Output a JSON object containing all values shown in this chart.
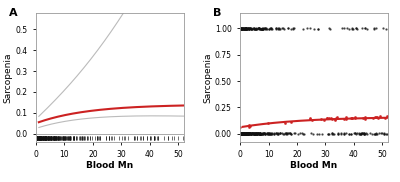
{
  "panel_A": {
    "label": "A",
    "xlim": [
      0,
      52
    ],
    "ylim": [
      -0.04,
      0.58
    ],
    "yticks": [
      0.0,
      0.1,
      0.2,
      0.3,
      0.4,
      0.5
    ],
    "xticks": [
      0,
      10,
      20,
      30,
      40,
      50
    ],
    "xlabel": "Blood Mn",
    "ylabel": "Sarcopenia",
    "curve_color": "#cc2222",
    "ci_color": "#bbbbbb",
    "rug_color": "#111111",
    "background": "#ffffff",
    "border_color": "#999999"
  },
  "panel_B": {
    "label": "B",
    "xlim": [
      0,
      52
    ],
    "ylim": [
      -0.08,
      1.15
    ],
    "yticks": [
      0.0,
      0.25,
      0.5,
      0.75,
      1.0
    ],
    "xticks": [
      0,
      10,
      20,
      30,
      40,
      50
    ],
    "xlabel": "Blood Mn",
    "ylabel": "Sarcopenia",
    "curve_color": "#cc2222",
    "scatter_black": "#111111",
    "scatter_red": "#cc2222",
    "background": "#ffffff",
    "border_color": "#999999"
  }
}
